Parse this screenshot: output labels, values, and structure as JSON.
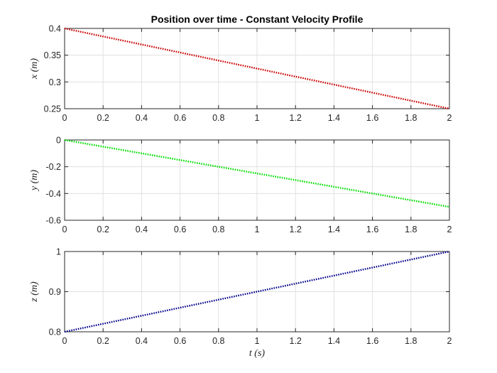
{
  "chart_data": [
    {
      "type": "line",
      "title": "Position over time - Constant Velocity Profile",
      "xlabel": "",
      "ylabel": "x (m)",
      "xlim": [
        0,
        2
      ],
      "ylim": [
        0.25,
        0.4
      ],
      "xticks": [
        "0",
        "0.2",
        "0.4",
        "0.6",
        "0.8",
        "1",
        "1.2",
        "1.4",
        "1.6",
        "1.8",
        "2"
      ],
      "yticks": [
        "0.25",
        "0.3",
        "0.35",
        "0.4"
      ],
      "grid": true,
      "series": [
        {
          "x": [
            0,
            2
          ],
          "y": [
            0.4,
            0.25
          ],
          "color": "#cc0000",
          "style": "dotted"
        }
      ]
    },
    {
      "type": "line",
      "title": "",
      "xlabel": "",
      "ylabel": "y (m)",
      "xlim": [
        0,
        2
      ],
      "ylim": [
        -0.6,
        0
      ],
      "xticks": [
        "0",
        "0.2",
        "0.4",
        "0.6",
        "0.8",
        "1",
        "1.2",
        "1.4",
        "1.6",
        "1.8",
        "2"
      ],
      "yticks": [
        "-0.6",
        "-0.4",
        "-0.2",
        "0"
      ],
      "grid": true,
      "series": [
        {
          "x": [
            0,
            2
          ],
          "y": [
            0,
            -0.5
          ],
          "color": "#00dd00",
          "style": "dotted"
        }
      ]
    },
    {
      "type": "line",
      "title": "",
      "xlabel": "t (s)",
      "ylabel": "z (m)",
      "xlim": [
        0,
        2
      ],
      "ylim": [
        0.8,
        1
      ],
      "xticks": [
        "0",
        "0.2",
        "0.4",
        "0.6",
        "0.8",
        "1",
        "1.2",
        "1.4",
        "1.6",
        "1.8",
        "2"
      ],
      "yticks": [
        "0.8",
        "0.9",
        "1"
      ],
      "grid": true,
      "series": [
        {
          "x": [
            0,
            2
          ],
          "y": [
            0.8,
            1
          ],
          "color": "#00008b",
          "style": "dotted"
        }
      ]
    }
  ]
}
